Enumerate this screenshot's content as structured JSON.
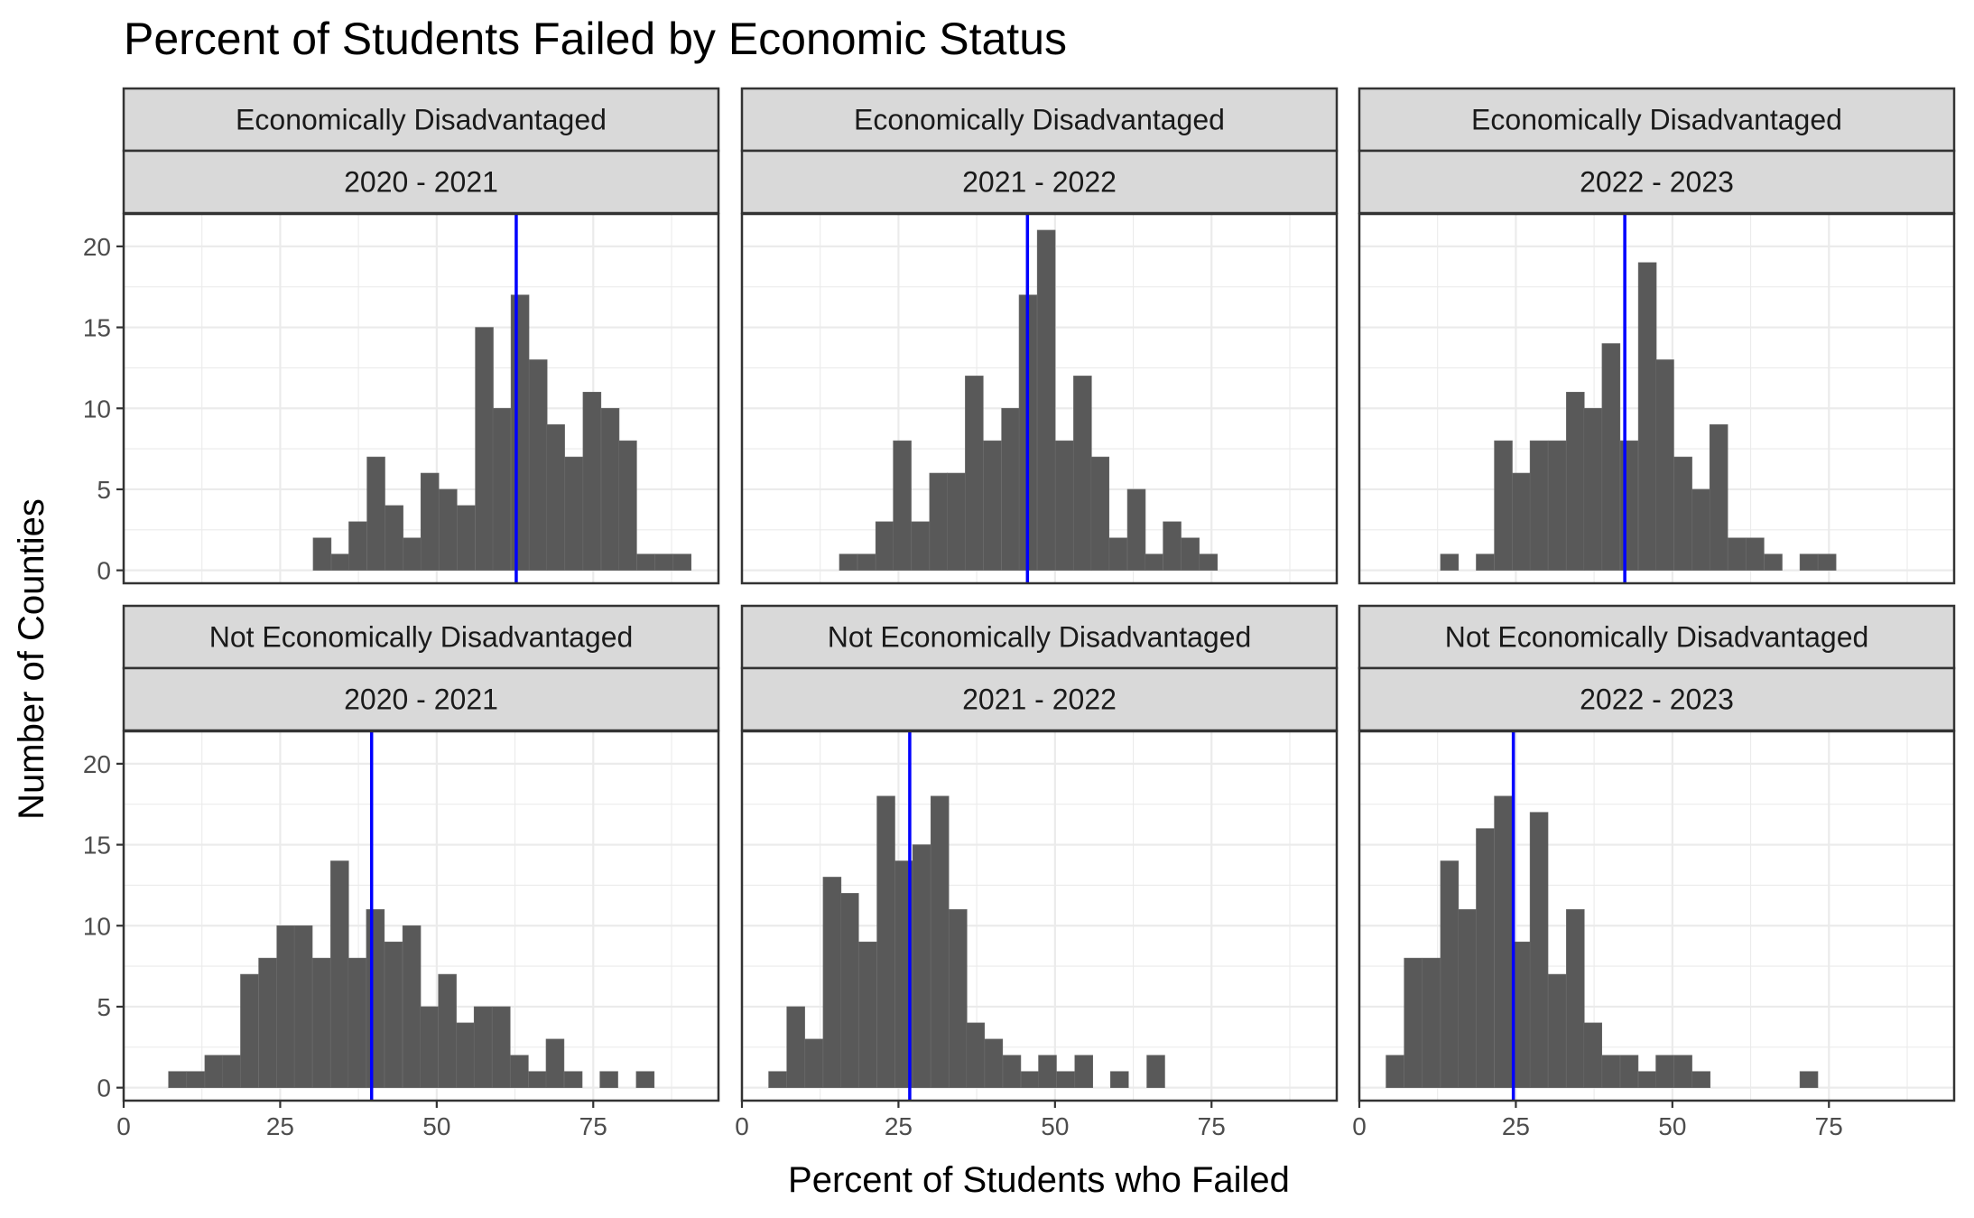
{
  "chart_data": {
    "type": "bar",
    "title": "Percent of Students Failed by Economic Status",
    "xlabel": "Percent of Students who Failed",
    "ylabel": "Number of Counties",
    "xlim": [
      0,
      95
    ],
    "ylim": [
      0,
      22
    ],
    "x_ticks": [
      0,
      25,
      50,
      75
    ],
    "y_ticks": [
      0,
      5,
      10,
      15,
      20
    ],
    "bin_width": 2.87,
    "bar_color": "#595959",
    "mean_line_color": "#0000ff",
    "grid": true,
    "panels": [
      {
        "group": "Economically Disadvantaged",
        "year": "2020 - 2021",
        "mean": 62.7,
        "bins": [
          [
            31.7,
            2
          ],
          [
            34.6,
            1
          ],
          [
            37.4,
            3
          ],
          [
            40.3,
            7
          ],
          [
            43.2,
            4
          ],
          [
            46.1,
            2
          ],
          [
            48.9,
            6
          ],
          [
            51.8,
            5
          ],
          [
            54.7,
            4
          ],
          [
            57.6,
            15
          ],
          [
            60.4,
            10
          ],
          [
            63.3,
            17
          ],
          [
            66.2,
            13
          ],
          [
            69.0,
            9
          ],
          [
            71.9,
            7
          ],
          [
            74.8,
            11
          ],
          [
            77.7,
            10
          ],
          [
            80.5,
            8
          ],
          [
            83.4,
            1
          ],
          [
            86.3,
            1
          ],
          [
            89.2,
            1
          ]
        ]
      },
      {
        "group": "Economically Disadvantaged",
        "year": "2021 - 2022",
        "mean": 45.6,
        "bins": [
          [
            17.0,
            1
          ],
          [
            19.9,
            1
          ],
          [
            22.8,
            3
          ],
          [
            25.6,
            8
          ],
          [
            28.5,
            3
          ],
          [
            31.4,
            6
          ],
          [
            34.2,
            6
          ],
          [
            37.1,
            12
          ],
          [
            40.0,
            8
          ],
          [
            42.9,
            10
          ],
          [
            45.7,
            17
          ],
          [
            48.6,
            21
          ],
          [
            51.5,
            8
          ],
          [
            54.4,
            12
          ],
          [
            57.2,
            7
          ],
          [
            60.1,
            2
          ],
          [
            63.0,
            5
          ],
          [
            65.8,
            1
          ],
          [
            68.7,
            3
          ],
          [
            71.6,
            2
          ],
          [
            74.5,
            1
          ]
        ]
      },
      {
        "group": "Economically Disadvantaged",
        "year": "2022 - 2023",
        "mean": 42.4,
        "bins": [
          [
            14.4,
            1
          ],
          [
            20.1,
            1
          ],
          [
            23.0,
            8
          ],
          [
            25.9,
            6
          ],
          [
            28.7,
            8
          ],
          [
            31.6,
            8
          ],
          [
            34.5,
            11
          ],
          [
            37.3,
            10
          ],
          [
            40.2,
            14
          ],
          [
            43.1,
            8
          ],
          [
            46.0,
            19
          ],
          [
            48.8,
            13
          ],
          [
            51.7,
            7
          ],
          [
            54.6,
            5
          ],
          [
            57.4,
            9
          ],
          [
            60.3,
            2
          ],
          [
            63.2,
            2
          ],
          [
            66.1,
            1
          ],
          [
            71.8,
            1
          ],
          [
            74.7,
            1
          ]
        ]
      },
      {
        "group": "Not Economically Disadvantaged",
        "year": "2020 - 2021",
        "mean": 39.6,
        "bins": [
          [
            8.6,
            1
          ],
          [
            11.5,
            1
          ],
          [
            14.4,
            2
          ],
          [
            17.2,
            2
          ],
          [
            20.1,
            7
          ],
          [
            23.0,
            8
          ],
          [
            25.9,
            10
          ],
          [
            28.7,
            10
          ],
          [
            31.6,
            8
          ],
          [
            34.5,
            14
          ],
          [
            37.3,
            8
          ],
          [
            40.2,
            11
          ],
          [
            43.1,
            9
          ],
          [
            46.0,
            10
          ],
          [
            48.8,
            5
          ],
          [
            51.7,
            7
          ],
          [
            54.6,
            4
          ],
          [
            57.4,
            5
          ],
          [
            60.3,
            5
          ],
          [
            63.2,
            2
          ],
          [
            66.1,
            1
          ],
          [
            68.9,
            3
          ],
          [
            71.8,
            1
          ],
          [
            77.5,
            1
          ],
          [
            83.3,
            1
          ]
        ]
      },
      {
        "group": "Not Economically Disadvantaged",
        "year": "2021 - 2022",
        "mean": 26.8,
        "bins": [
          [
            5.7,
            1
          ],
          [
            8.6,
            5
          ],
          [
            11.5,
            3
          ],
          [
            14.4,
            13
          ],
          [
            17.2,
            12
          ],
          [
            20.1,
            9
          ],
          [
            23.0,
            18
          ],
          [
            25.9,
            14
          ],
          [
            28.7,
            15
          ],
          [
            31.6,
            18
          ],
          [
            34.5,
            11
          ],
          [
            37.3,
            4
          ],
          [
            40.2,
            3
          ],
          [
            43.1,
            2
          ],
          [
            46.0,
            1
          ],
          [
            48.8,
            2
          ],
          [
            51.7,
            1
          ],
          [
            54.6,
            2
          ],
          [
            60.3,
            1
          ],
          [
            66.1,
            2
          ]
        ]
      },
      {
        "group": "Not Economically Disadvantaged",
        "year": "2022 - 2023",
        "mean": 24.6,
        "bins": [
          [
            5.7,
            2
          ],
          [
            8.6,
            8
          ],
          [
            11.5,
            8
          ],
          [
            14.4,
            14
          ],
          [
            17.2,
            11
          ],
          [
            20.1,
            16
          ],
          [
            23.0,
            18
          ],
          [
            25.9,
            9
          ],
          [
            28.7,
            17
          ],
          [
            31.6,
            7
          ],
          [
            34.5,
            11
          ],
          [
            37.3,
            4
          ],
          [
            40.2,
            2
          ],
          [
            43.1,
            2
          ],
          [
            46.0,
            1
          ],
          [
            48.8,
            2
          ],
          [
            51.7,
            2
          ],
          [
            54.6,
            1
          ],
          [
            71.8,
            1
          ]
        ]
      }
    ]
  }
}
